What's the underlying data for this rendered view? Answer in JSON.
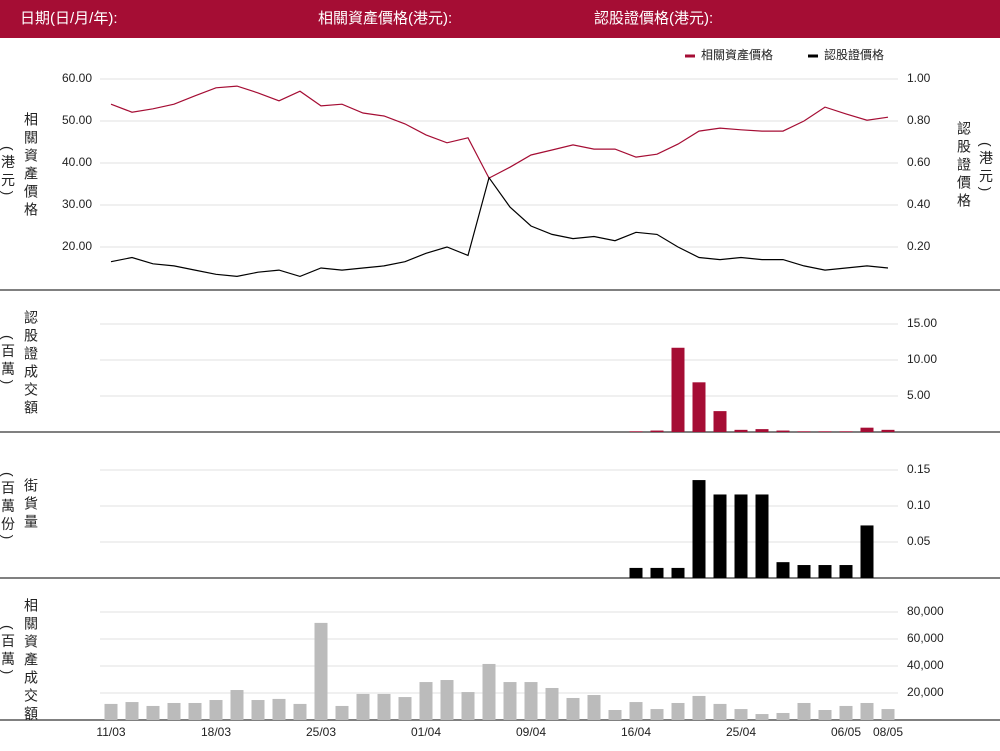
{
  "header": {
    "date_label": "日期(日/月/年):",
    "underlying_label": "相關資產價格(港元):",
    "warrant_label": "認股證價格(港元):"
  },
  "chart_data": [
    {
      "type": "line",
      "legend": "top-right",
      "grid": true,
      "ylabel": "相關資產價格",
      "ylabel_unit": "(港元)",
      "y2label": "認股證價格",
      "y2label_unit": "(港元)",
      "ylim": [
        10,
        62
      ],
      "yticks": [
        {
          "value": 60,
          "label": "60.00"
        },
        {
          "value": 50,
          "label": "50.00"
        },
        {
          "value": 40,
          "label": "40.00"
        },
        {
          "value": 30,
          "label": "30.00"
        },
        {
          "value": 20,
          "label": "20.00"
        }
      ],
      "y2lim": [
        0,
        1.04
      ],
      "y2ticks": [
        {
          "value": 1,
          "label": "1.00"
        },
        {
          "value": 0.8,
          "label": "0.80"
        },
        {
          "value": 0.6,
          "label": "0.60"
        },
        {
          "value": 0.4,
          "label": "0.40"
        },
        {
          "value": 0.2,
          "label": "0.20"
        }
      ],
      "series": [
        {
          "name": "相關資產價格",
          "color": "#a50d34",
          "values": [
            54.0,
            52.1,
            52.9,
            54.0,
            56.0,
            57.9,
            58.3,
            56.7,
            54.8,
            57.1,
            53.6,
            54.0,
            51.9,
            51.2,
            49.3,
            46.7,
            44.8,
            46.0,
            36.4,
            39.0,
            41.9,
            43.1,
            44.3,
            43.3,
            43.3,
            41.4,
            42.1,
            44.5,
            47.6,
            48.3,
            47.9,
            47.6,
            47.6,
            50.0,
            53.3,
            51.7,
            50.2,
            50.9
          ]
        },
        {
          "name": "認股證價格",
          "color": "#000000",
          "axis": "y2",
          "values": [
            0.13,
            0.15,
            0.12,
            0.11,
            0.09,
            0.07,
            0.06,
            0.08,
            0.09,
            0.06,
            0.1,
            0.09,
            0.1,
            0.11,
            0.13,
            0.17,
            0.2,
            0.16,
            0.53,
            0.39,
            0.3,
            0.26,
            0.24,
            0.25,
            0.23,
            0.27,
            0.26,
            0.2,
            0.15,
            0.14,
            0.15,
            0.14,
            0.14,
            0.11,
            0.09,
            0.1,
            0.11,
            0.1
          ]
        }
      ]
    },
    {
      "type": "bar",
      "grid": true,
      "ylabel": "認股證成交額",
      "ylabel_unit": "(百萬)",
      "color": "#a50d34",
      "ylim": [
        0,
        17.5
      ],
      "yticks": [
        {
          "value": 15,
          "label": "15.00"
        },
        {
          "value": 10,
          "label": "10.00"
        },
        {
          "value": 5,
          "label": "5.00"
        }
      ],
      "values": [
        0,
        0,
        0,
        0,
        0,
        0,
        0,
        0,
        0,
        0,
        0,
        0,
        0,
        0,
        0,
        0,
        0,
        0,
        0,
        0,
        0,
        0,
        0,
        0,
        0,
        0.1,
        0.2,
        11.7,
        6.9,
        2.9,
        0.3,
        0.4,
        0.2,
        0.1,
        0.1,
        0.1,
        0.6,
        0.3
      ]
    },
    {
      "type": "bar",
      "grid": true,
      "ylabel": "街貨量",
      "ylabel_unit": "(百萬份)",
      "color": "#000000",
      "ylim": [
        0,
        0.17
      ],
      "yticks": [
        0.15,
        {
          "value": 0.1,
          "label": "0.10"
        },
        0.05
      ],
      "values": [
        0,
        0,
        0,
        0,
        0,
        0,
        0,
        0,
        0,
        0,
        0,
        0,
        0,
        0,
        0,
        0,
        0,
        0,
        0,
        0,
        0,
        0,
        0,
        0,
        0,
        0.014,
        0.014,
        0.014,
        0.136,
        0.116,
        0.116,
        0.116,
        0.022,
        0.018,
        0.018,
        0.018,
        0.073,
        0
      ]
    },
    {
      "type": "bar",
      "grid": true,
      "ylabel": "相關資產成交額",
      "ylabel_unit": "(百萬)",
      "color": "#bbbbbb",
      "ylim": [
        0,
        97000
      ],
      "yticks": [
        {
          "value": 80000,
          "label": "80,000"
        },
        {
          "value": 60000,
          "label": "60,000"
        },
        {
          "value": 40000,
          "label": "40,000"
        },
        {
          "value": 20000,
          "label": "20,000"
        }
      ],
      "categories": [
        "11/03",
        null,
        null,
        null,
        null,
        "18/03",
        null,
        null,
        null,
        null,
        "25/03",
        null,
        null,
        null,
        null,
        "01/04",
        null,
        null,
        null,
        null,
        "09/04",
        null,
        null,
        null,
        null,
        "16/04",
        null,
        null,
        null,
        null,
        "25/04",
        null,
        null,
        null,
        null,
        "06/05",
        null,
        "08/05"
      ],
      "values": [
        11900,
        13300,
        10400,
        12600,
        12600,
        14800,
        22200,
        14800,
        15600,
        11900,
        71900,
        10400,
        19300,
        19300,
        17000,
        28100,
        29600,
        20700,
        41500,
        28100,
        28100,
        23700,
        16300,
        18500,
        7400,
        13300,
        8100,
        12600,
        17800,
        11900,
        8100,
        4400,
        5200,
        12600,
        7400,
        10400,
        12600,
        8100
      ]
    }
  ]
}
